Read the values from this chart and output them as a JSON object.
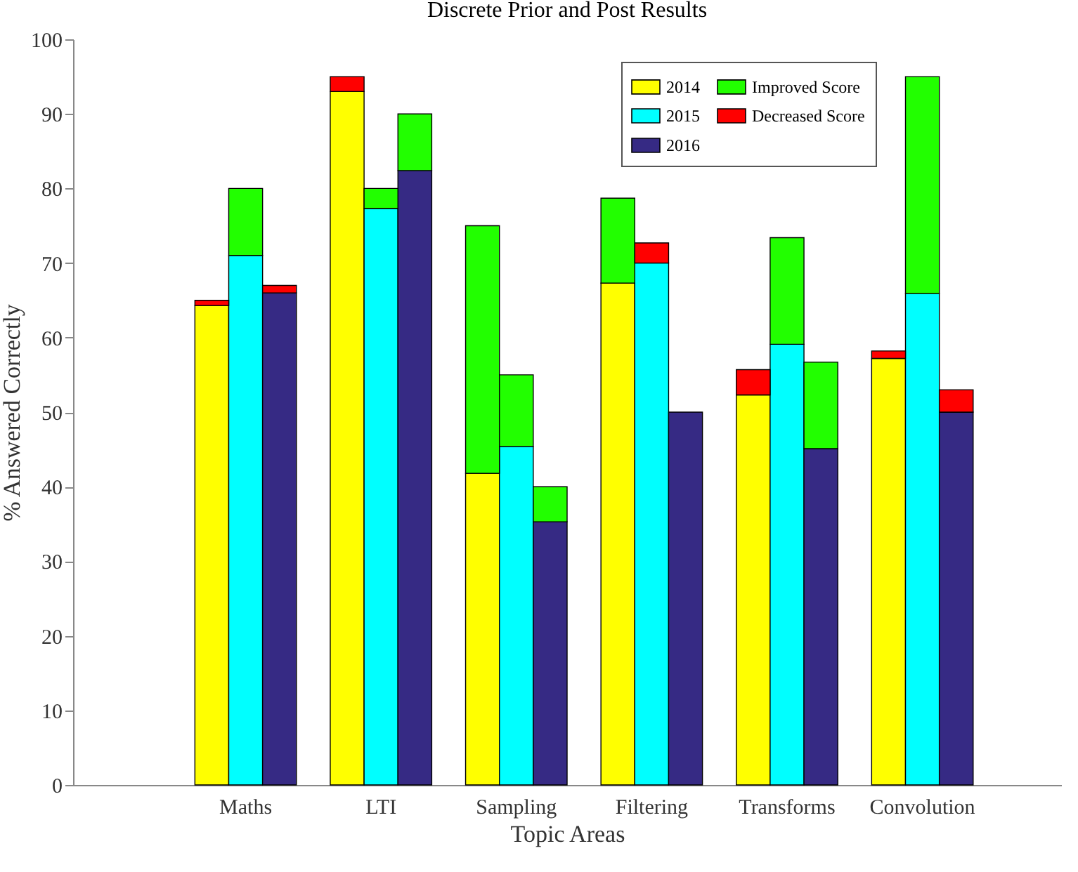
{
  "chart_data": {
    "type": "bar",
    "title": "Discrete Prior and Post Results",
    "xlabel": "Topic Areas",
    "ylabel": "% Answered Correctly",
    "categories": [
      null,
      null,
      null,
      null,
      "Maths",
      null,
      null,
      null,
      "LTI",
      null,
      null,
      null,
      "Sampling",
      null,
      null,
      null,
      "Filtering",
      null,
      null,
      null,
      "Transforms",
      null,
      null,
      null,
      "Convolution",
      null,
      null,
      null
    ],
    "stacked": true,
    "series": [
      {
        "name": "2014",
        "color": "#ffff00",
        "values": [
          null,
          null,
          null,
          64.3,
          null,
          null,
          null,
          93,
          null,
          null,
          null,
          41.8,
          null,
          null,
          null,
          67.3,
          null,
          null,
          null,
          52.3,
          null,
          null,
          null,
          57.2,
          null,
          null,
          null,
          null
        ]
      },
      {
        "name": "2015",
        "color": "#00ffff",
        "values": [
          null,
          null,
          null,
          null,
          71,
          null,
          null,
          null,
          77.3,
          null,
          null,
          null,
          45.4,
          null,
          null,
          null,
          70,
          null,
          null,
          null,
          59.1,
          null,
          null,
          null,
          65.9,
          null,
          null,
          null
        ]
      },
      {
        "name": "2016",
        "color": "#362a84",
        "values": [
          null,
          null,
          null,
          null,
          null,
          66,
          null,
          null,
          null,
          82.4,
          null,
          null,
          null,
          35.3,
          null,
          null,
          null,
          50,
          null,
          null,
          null,
          45.1,
          null,
          null,
          null,
          50,
          null,
          null
        ]
      },
      {
        "name": "Improved Score",
        "color": "#22ff00",
        "values": [
          null,
          null,
          null,
          null,
          9,
          null,
          null,
          null,
          2.7,
          7.6,
          null,
          33.2,
          9.6,
          4.7,
          null,
          11.4,
          null,
          null,
          null,
          null,
          14.3,
          11.6,
          null,
          null,
          29.1,
          null,
          null,
          null
        ]
      },
      {
        "name": "Decreased Score",
        "color": "#ff0000",
        "values": [
          null,
          null,
          null,
          0.7,
          null,
          1,
          null,
          2,
          null,
          null,
          null,
          null,
          null,
          null,
          null,
          null,
          2.7,
          null,
          null,
          3.4,
          null,
          null,
          null,
          1,
          null,
          3,
          null,
          null
        ]
      }
    ],
    "ylim": [
      0,
      100
    ],
    "yticks": [
      0,
      10,
      20,
      30,
      40,
      50,
      60,
      70,
      80,
      90,
      100
    ],
    "legend": "top right"
  }
}
